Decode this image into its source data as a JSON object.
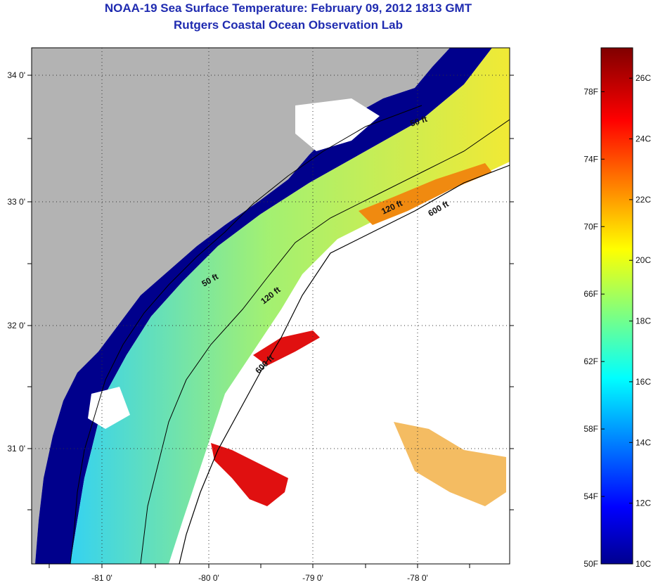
{
  "title": "NOAA-19 Sea Surface Temperature:  February 09, 2012 1813 GMT",
  "subtitle": "Rutgers Coastal Ocean Observation Lab",
  "map": {
    "lat_ticks": [
      "34 0'",
      "33 0'",
      "32 0'",
      "31 0'"
    ],
    "lon_ticks": [
      "-81 0'",
      "-80 0'",
      "-79 0'",
      "-78 0'"
    ],
    "contours": [
      "50 ft",
      "50 ft",
      "120 ft",
      "120 ft",
      "600 ft",
      "600 ft"
    ],
    "colors": {
      "land": "#b3b3b3",
      "cloud_or_nodata": "#ffffff",
      "cold": "#00008c",
      "warm": "#e00000"
    }
  },
  "colorbar": {
    "fahrenheit": [
      "78F",
      "74F",
      "70F",
      "66F",
      "62F",
      "58F",
      "54F",
      "50F"
    ],
    "celsius": [
      "26C",
      "24C",
      "22C",
      "20C",
      "18C",
      "16C",
      "14C",
      "12C",
      "10C"
    ],
    "colormap": "jet",
    "range_c": [
      10,
      27
    ]
  }
}
